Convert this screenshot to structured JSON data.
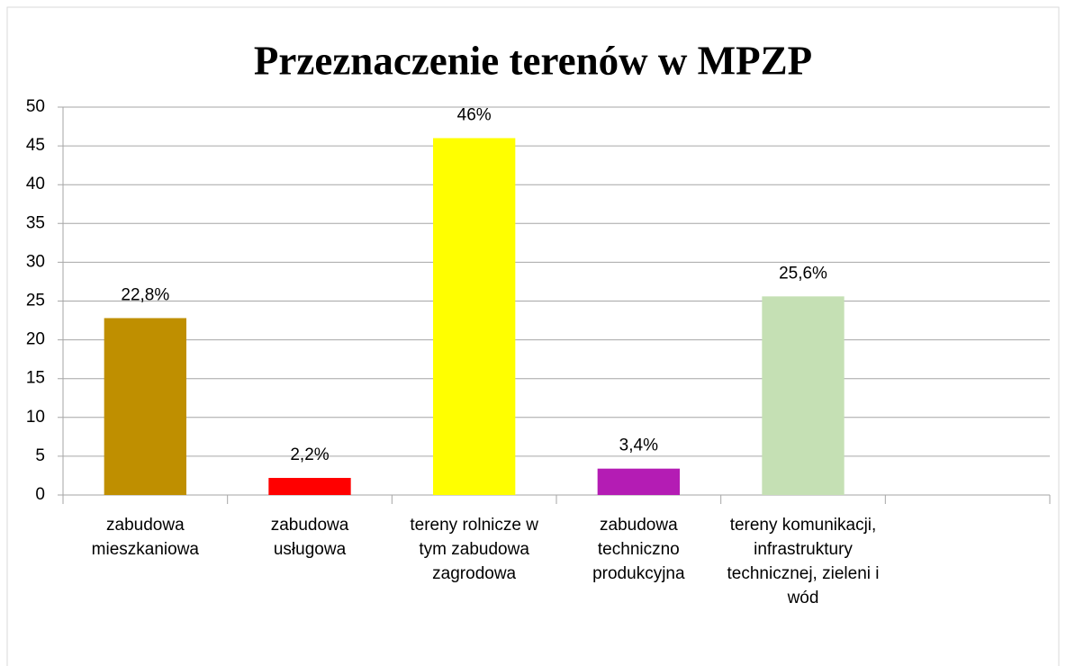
{
  "chart_data": {
    "type": "bar",
    "title": "Przeznaczenie terenów w MPZP",
    "categories": [
      "zabudowa mieszkaniowa",
      "zabudowa usługowa",
      "tereny rolnicze w tym zabudowa zagrodowa",
      "zabudowa techniczno produkcyjna",
      "tereny komunikacji, infrastruktury technicznej, zieleni i wód",
      null
    ],
    "values": [
      22.8,
      2.2,
      46,
      3.4,
      25.6,
      null
    ],
    "value_labels": [
      "22,8%",
      "2,2%",
      "46%",
      "3,4%",
      "25,6%",
      null
    ],
    "colors": [
      "#bf8f00",
      "#ff0000",
      "#ffff00",
      "#b41cb4",
      "#c5e0b4",
      null
    ],
    "ylim": [
      0,
      50
    ],
    "yticks": [
      0,
      5,
      10,
      15,
      20,
      25,
      30,
      35,
      40,
      45,
      50
    ],
    "grid": true
  }
}
